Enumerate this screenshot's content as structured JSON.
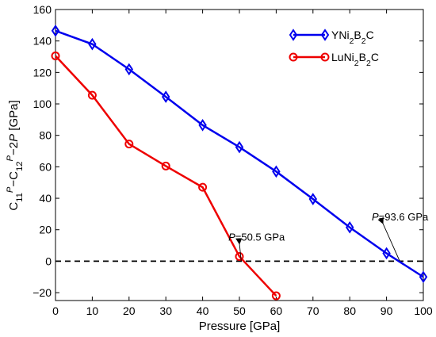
{
  "chart_data": {
    "type": "line",
    "xlabel": "Pressure [GPa]",
    "ylabel": {
      "parts": [
        {
          "text": "C",
          "style": "normal"
        },
        {
          "text": "11",
          "style": "sub"
        },
        {
          "text": "P",
          "style": "sup-italic"
        },
        {
          "text": "−C",
          "style": "normal"
        },
        {
          "text": "12",
          "style": "sub"
        },
        {
          "text": "P",
          "style": "sup-italic"
        },
        {
          "text": "−2",
          "style": "normal"
        },
        {
          "text": "P",
          "style": "italic"
        },
        {
          "text": " [GPa]",
          "style": "normal"
        }
      ]
    },
    "xlim": [
      0,
      100
    ],
    "ylim": [
      -25,
      160
    ],
    "xticks": [
      0,
      10,
      20,
      30,
      40,
      50,
      60,
      70,
      80,
      90,
      100
    ],
    "yticks": [
      -20,
      0,
      20,
      40,
      60,
      80,
      100,
      120,
      140,
      160
    ],
    "grid": false,
    "legend_position": "top-right",
    "series": [
      {
        "legend": [
          {
            "text": "YNi",
            "style": "normal"
          },
          {
            "text": "2",
            "style": "sub"
          },
          {
            "text": "B",
            "style": "normal"
          },
          {
            "text": "2",
            "style": "sub"
          },
          {
            "text": "C",
            "style": "normal"
          }
        ],
        "color": "#0000ee",
        "marker": "diamond",
        "x": [
          0,
          10,
          20,
          30,
          40,
          50,
          60,
          70,
          80,
          90,
          100
        ],
        "y": [
          146.5,
          138,
          122,
          104.5,
          86.5,
          72.5,
          57,
          39.5,
          21.5,
          5,
          -10
        ]
      },
      {
        "legend": [
          {
            "text": "LuNi",
            "style": "normal"
          },
          {
            "text": "2",
            "style": "sub"
          },
          {
            "text": "B",
            "style": "normal"
          },
          {
            "text": "2",
            "style": "sub"
          },
          {
            "text": "C",
            "style": "normal"
          }
        ],
        "color": "#ee0000",
        "marker": "circle",
        "x": [
          0,
          10,
          20,
          30,
          40,
          50,
          60
        ],
        "y": [
          130.5,
          105.5,
          74.5,
          60.5,
          47,
          3,
          -22
        ]
      }
    ],
    "reference_line": {
      "y": 0,
      "style": "dashed",
      "color": "#000000"
    },
    "annotations": [
      {
        "parts": [
          {
            "text": "P",
            "style": "italic"
          },
          {
            "text": "=50.5 GPa",
            "style": "normal"
          }
        ],
        "text_at": [
          47,
          13
        ],
        "arrow_to": [
          50.5,
          0
        ]
      },
      {
        "parts": [
          {
            "text": "P",
            "style": "italic"
          },
          {
            "text": "=93.6 GPa",
            "style": "normal"
          }
        ],
        "text_at": [
          86,
          26
        ],
        "arrow_to": [
          93.6,
          0
        ]
      }
    ]
  }
}
